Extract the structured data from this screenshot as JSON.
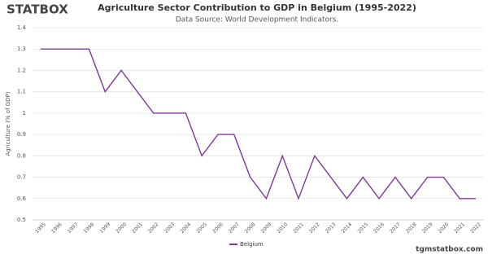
{
  "logo": "STATBOX",
  "footer": "tgmstatbox.com",
  "chart_data": {
    "type": "line",
    "title": "Agriculture Sector Contribution to GDP in Belgium (1995-2022)",
    "subtitle": "Data Source: World Development Indicators.",
    "y_label": "Agriculture (% of GDP)",
    "categories": [
      "1995",
      "1996",
      "1997",
      "1998",
      "1999",
      "2000",
      "2001",
      "2002",
      "2003",
      "2004",
      "2005",
      "2006",
      "2007",
      "2008",
      "2009",
      "2010",
      "2011",
      "2012",
      "2013",
      "2014",
      "2015",
      "2016",
      "2017",
      "2018",
      "2019",
      "2020",
      "2021",
      "2022"
    ],
    "series": [
      {
        "name": "Belgium",
        "color": "#7d3c98",
        "values": [
          1.3,
          1.3,
          1.3,
          1.3,
          1.1,
          1.2,
          1.1,
          1.0,
          1.0,
          1.0,
          0.8,
          0.9,
          0.9,
          0.7,
          0.6,
          0.8,
          0.6,
          0.8,
          0.7,
          0.6,
          0.7,
          0.6,
          0.7,
          0.6,
          0.7,
          0.7,
          0.6,
          0.6
        ]
      }
    ],
    "ylim": [
      0.5,
      1.4
    ],
    "yticks": [
      0.5,
      0.6,
      0.7,
      0.8,
      0.9,
      1,
      1.1,
      1.2,
      1.3,
      1.4
    ],
    "grid": true,
    "legend": "bottom"
  }
}
